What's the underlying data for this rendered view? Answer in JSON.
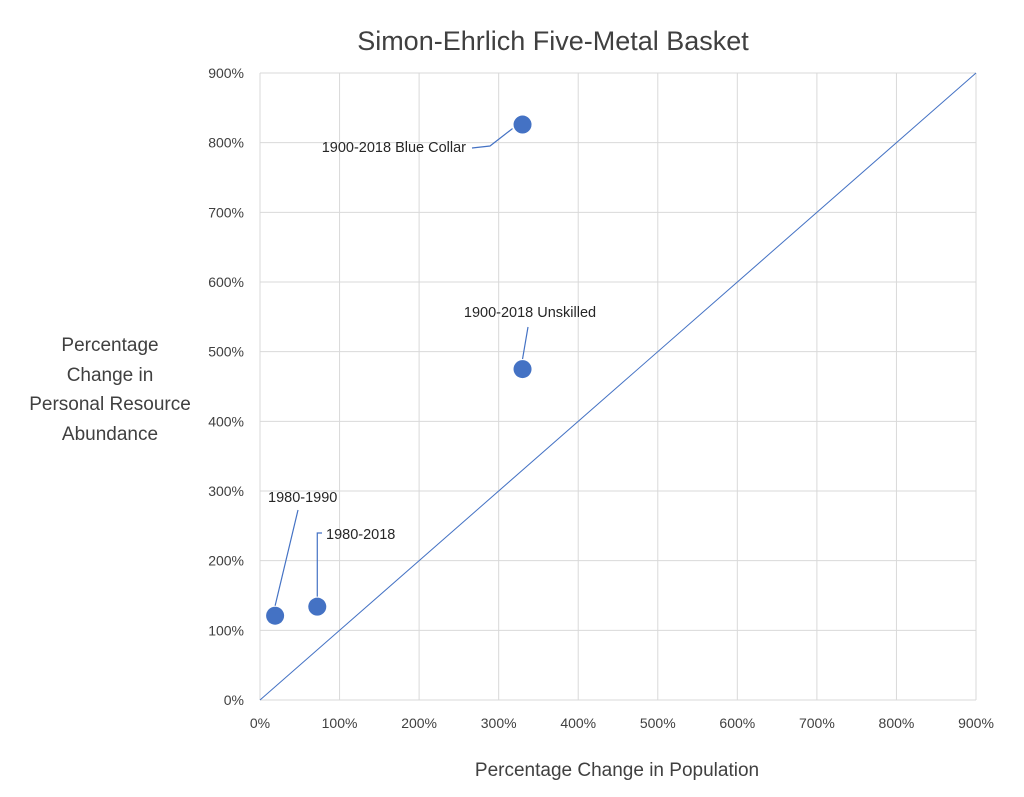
{
  "chart_data": {
    "type": "scatter",
    "title": "Simon-Ehrlich Five-Metal Basket",
    "xlabel": "Percentage Change in Population",
    "ylabel": [
      "Percentage",
      "Change in",
      "Personal Resource",
      "Abundance"
    ],
    "xlim": [
      0,
      900
    ],
    "ylim": [
      0,
      900
    ],
    "x_ticks": [
      "0%",
      "100%",
      "200%",
      "300%",
      "400%",
      "500%",
      "600%",
      "700%",
      "800%",
      "900%"
    ],
    "y_ticks": [
      "0%",
      "100%",
      "200%",
      "300%",
      "400%",
      "500%",
      "600%",
      "700%",
      "800%",
      "900%"
    ],
    "grid": true,
    "reference_line": {
      "from": [
        0,
        0
      ],
      "to": [
        900,
        900
      ]
    },
    "marker_color": "#4472c4",
    "line_color": "#4472c4",
    "points": [
      {
        "label": "1980-1990",
        "x": 19,
        "y": 121
      },
      {
        "label": "1980-2018",
        "x": 72,
        "y": 134
      },
      {
        "label": "1900-2018 Unskilled",
        "x": 330,
        "y": 475
      },
      {
        "label": "1900-2018 Blue Collar",
        "x": 330,
        "y": 826
      }
    ]
  }
}
